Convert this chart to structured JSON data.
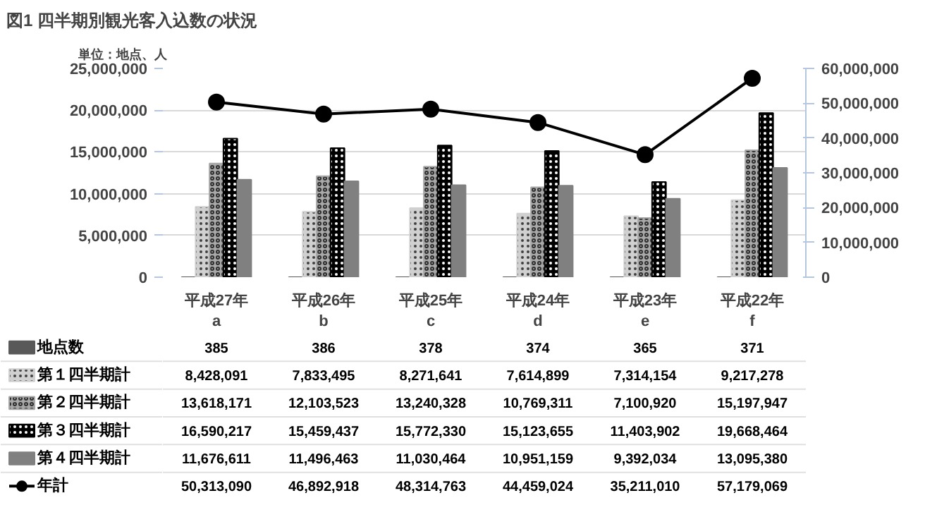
{
  "chart_data": {
    "type": "bar",
    "title": "図1 四半期別観光客入込数の状況",
    "annotations": [
      "単位：地点、人"
    ],
    "categories": [
      "平成27年\na",
      "平成26年\nb",
      "平成25年\nc",
      "平成24年\nd",
      "平成23年\ne",
      "平成22年\nf"
    ],
    "series": [
      {
        "name": "地点数",
        "color": "#595959",
        "values": [
          385,
          386,
          378,
          374,
          365,
          371
        ],
        "value_labels": [
          "385",
          "386",
          "378",
          "374",
          "365",
          "371"
        ]
      },
      {
        "name": "第１四半期計",
        "color": "#d0d0d0",
        "values": [
          8428091,
          7833495,
          8271641,
          7614899,
          7314154,
          9217278
        ],
        "value_labels": [
          "8,428,091",
          "7,833,495",
          "8,271,641",
          "7,614,899",
          "7,314,154",
          "9,217,278"
        ]
      },
      {
        "name": "第２四半期計",
        "color": "#a8a8a8",
        "values": [
          13618171,
          12103523,
          13240328,
          10769311,
          7100920,
          15197947
        ],
        "value_labels": [
          "13,618,171",
          "12,103,523",
          "13,240,328",
          "10,769,311",
          "7,100,920",
          "15,197,947"
        ]
      },
      {
        "name": "第３四半期計",
        "color": "#000000",
        "values": [
          16590217,
          15459437,
          15772330,
          15123655,
          11403902,
          19668464
        ],
        "value_labels": [
          "16,590,217",
          "15,459,437",
          "15,772,330",
          "15,123,655",
          "11,403,902",
          "19,668,464"
        ]
      },
      {
        "name": "第４四半期計",
        "color": "#808080",
        "values": [
          11676611,
          11496463,
          11030464,
          10951159,
          9392034,
          13095380
        ],
        "value_labels": [
          "11,676,611",
          "11,496,463",
          "11,030,464",
          "10,951,159",
          "9,392,034",
          "13,095,380"
        ]
      },
      {
        "name": "年計",
        "color": "#000000",
        "type": "line",
        "axis": "y2",
        "marker": "circle",
        "values": [
          50313090,
          46892918,
          48314763,
          44459024,
          35211010,
          57179069
        ],
        "value_labels": [
          "50,313,090",
          "46,892,918",
          "48,314,763",
          "44,459,024",
          "35,211,010",
          "57,179,069"
        ]
      }
    ],
    "ylim": [
      0,
      25000000
    ],
    "yticks": [
      {
        "value": 0,
        "label": "0"
      },
      {
        "value": 5000000,
        "label": "5,000,000"
      },
      {
        "value": 10000000,
        "label": "10,000,000"
      },
      {
        "value": 15000000,
        "label": "15,000,000"
      },
      {
        "value": 20000000,
        "label": "20,000,000"
      },
      {
        "value": 25000000,
        "label": "25,000,000"
      }
    ],
    "y2lim": [
      0,
      60000000
    ],
    "y2ticks": [
      {
        "value": 0,
        "label": "0"
      },
      {
        "value": 10000000,
        "label": "10,000,000"
      },
      {
        "value": 20000000,
        "label": "20,000,000"
      },
      {
        "value": 30000000,
        "label": "30,000,000"
      },
      {
        "value": 40000000,
        "label": "40,000,000"
      },
      {
        "value": 50000000,
        "label": "50,000,000"
      },
      {
        "value": 60000000,
        "label": "60,000,000"
      }
    ],
    "grid": "y",
    "legend": "bottom left"
  }
}
